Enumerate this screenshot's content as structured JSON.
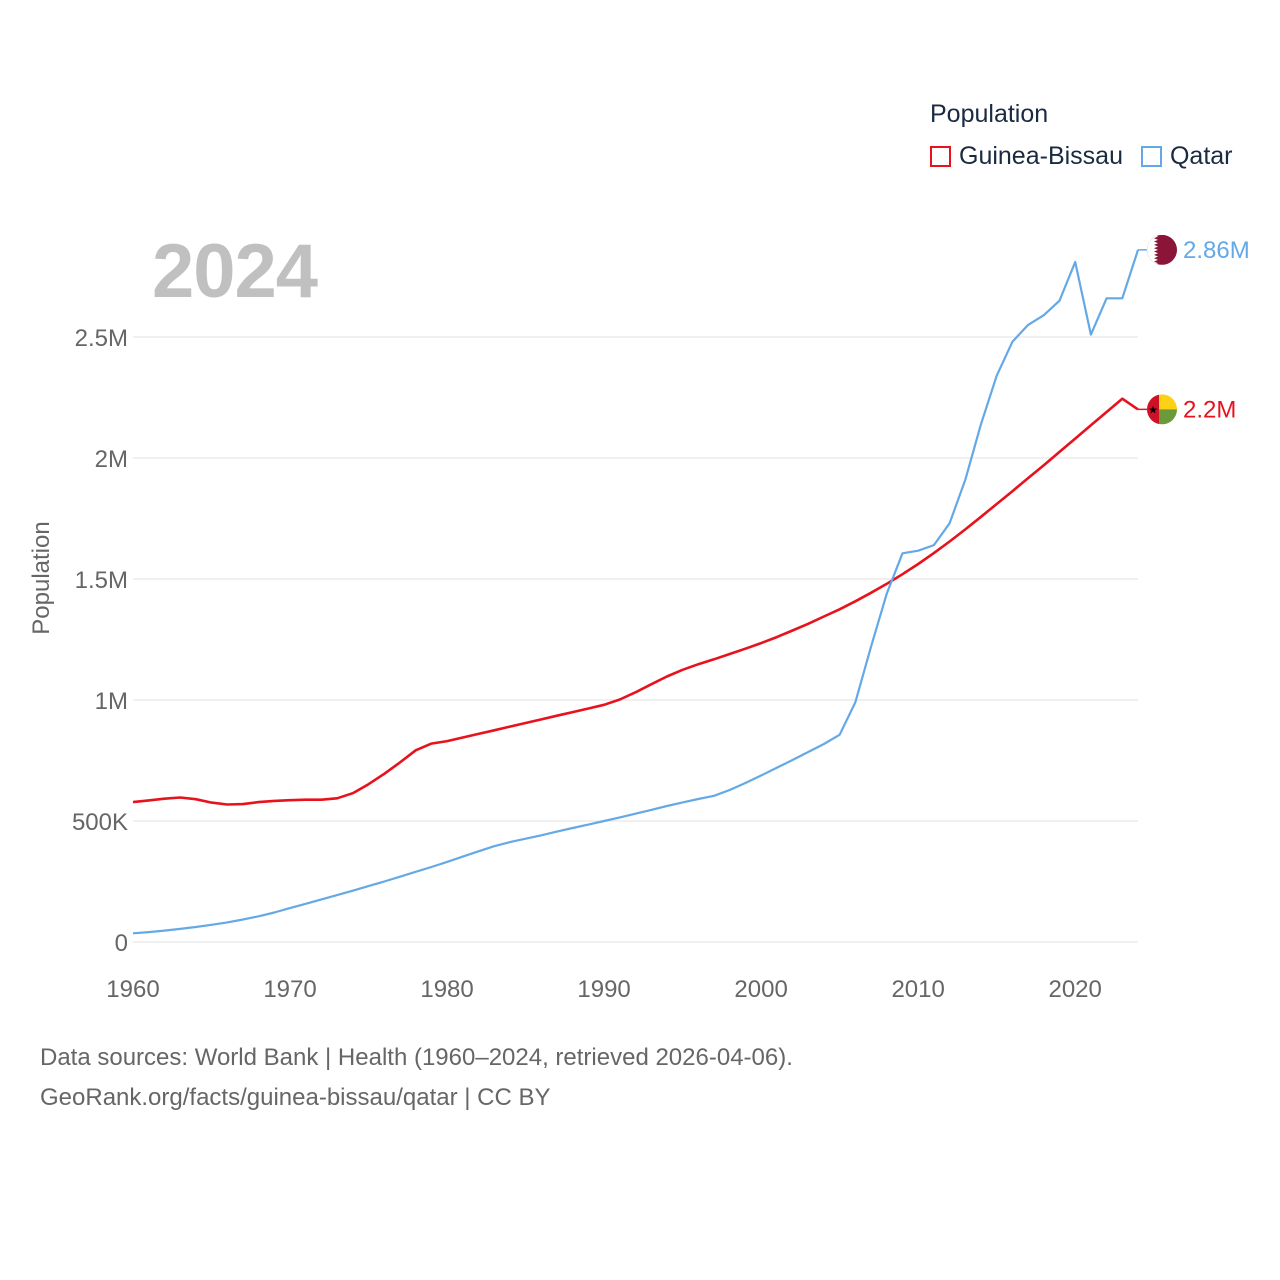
{
  "chart_data": {
    "type": "line",
    "title": "Population",
    "year_label": "2024",
    "ylabel": "Population",
    "xlabel": "",
    "xlim": [
      1960,
      2024
    ],
    "ylim": [
      0,
      2800000
    ],
    "x_ticks": [
      {
        "value": 1960,
        "label": "1960"
      },
      {
        "value": 1970,
        "label": "1970"
      },
      {
        "value": 1980,
        "label": "1980"
      },
      {
        "value": 1990,
        "label": "1990"
      },
      {
        "value": 2000,
        "label": "2000"
      },
      {
        "value": 2010,
        "label": "2010"
      },
      {
        "value": 2020,
        "label": "2020"
      }
    ],
    "y_ticks": [
      {
        "value": 0,
        "label": "0"
      },
      {
        "value": 500000,
        "label": "500K"
      },
      {
        "value": 1000000,
        "label": "1M"
      },
      {
        "value": 1500000,
        "label": "1.5M"
      },
      {
        "value": 2000000,
        "label": "2M"
      },
      {
        "value": 2500000,
        "label": "2.5M"
      }
    ],
    "grid": true,
    "legend_position": "top-right",
    "x": [
      1960,
      1961,
      1962,
      1963,
      1964,
      1965,
      1966,
      1967,
      1968,
      1969,
      1970,
      1971,
      1972,
      1973,
      1974,
      1975,
      1976,
      1977,
      1978,
      1979,
      1980,
      1981,
      1982,
      1983,
      1984,
      1985,
      1986,
      1987,
      1988,
      1989,
      1990,
      1991,
      1992,
      1993,
      1994,
      1995,
      1996,
      1997,
      1998,
      1999,
      2000,
      2001,
      2002,
      2003,
      2004,
      2005,
      2006,
      2007,
      2008,
      2009,
      2010,
      2011,
      2012,
      2013,
      2014,
      2015,
      2016,
      2017,
      2018,
      2019,
      2020,
      2021,
      2022,
      2023,
      2024
    ],
    "series": [
      {
        "name": "Guinea-Bissau",
        "color": "#e8121d",
        "end_label": "2.2M",
        "flag": "guinea-bissau-flag",
        "values": [
          578000,
          585000,
          592000,
          597000,
          590000,
          576000,
          568000,
          570000,
          578000,
          583000,
          586000,
          588000,
          588000,
          594000,
          615000,
          652000,
          695000,
          742000,
          792000,
          820000,
          830000,
          845000,
          860000,
          875000,
          890000,
          905000,
          920000,
          935000,
          950000,
          965000,
          980000,
          1002000,
          1032000,
          1065000,
          1097000,
          1125000,
          1148000,
          1168000,
          1190000,
          1212000,
          1235000,
          1260000,
          1287000,
          1315000,
          1345000,
          1375000,
          1408000,
          1443000,
          1480000,
          1520000,
          1562000,
          1607000,
          1655000,
          1705000,
          1757000,
          1810000,
          1863000,
          1917000,
          1970000,
          2025000,
          2080000,
          2135000,
          2190000,
          2245000,
          2201000
        ]
      },
      {
        "name": "Qatar",
        "color": "#64a9e6",
        "end_label": "2.86M",
        "flag": "qatar-flag",
        "values": [
          36000,
          41000,
          47000,
          54000,
          62000,
          71000,
          81000,
          93000,
          106000,
          122000,
          140000,
          158000,
          176000,
          194000,
          212000,
          231000,
          250000,
          270000,
          290000,
          310000,
          331000,
          353000,
          375000,
          396000,
          413000,
          427000,
          441000,
          456000,
          471000,
          485000,
          500000,
          515000,
          530000,
          546000,
          562000,
          577000,
          591000,
          604000,
          628000,
          657000,
          688000,
          720000,
          752000,
          785000,
          818000,
          856000,
          990000,
          1220000,
          1440000,
          1606000,
          1617000,
          1640000,
          1730000,
          1910000,
          2140000,
          2340000,
          2480000,
          2550000,
          2590000,
          2650000,
          2810000,
          2510000,
          2660000,
          2660000,
          2860000
        ]
      }
    ],
    "source_line1": "Data sources: World Bank | Health (1960–2024, retrieved 2026-04-06).",
    "source_line2": "GeoRank.org/facts/guinea-bissau/qatar | CC BY"
  }
}
